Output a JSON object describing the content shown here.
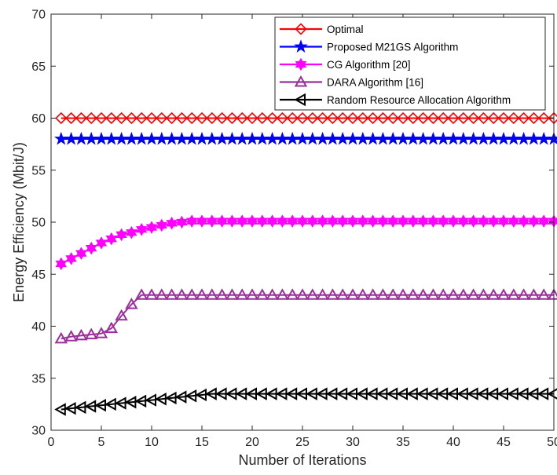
{
  "chart_data": {
    "type": "line",
    "title": "",
    "xlabel": "Number of Iterations",
    "ylabel": "Energy Efficiency (Mbit/J)",
    "xlim": [
      0,
      50
    ],
    "ylim": [
      30,
      70
    ],
    "xticks": [
      "0",
      "5",
      "10",
      "15",
      "20",
      "25",
      "30",
      "35",
      "40",
      "45",
      "50"
    ],
    "yticks": [
      "30",
      "35",
      "40",
      "45",
      "50",
      "55",
      "60",
      "65",
      "70"
    ],
    "grid": false,
    "legend_position": "top-right",
    "x": [
      1,
      2,
      3,
      4,
      5,
      6,
      7,
      8,
      9,
      10,
      11,
      12,
      13,
      14,
      15,
      16,
      17,
      18,
      19,
      20,
      21,
      22,
      23,
      24,
      25,
      26,
      27,
      28,
      29,
      30,
      31,
      32,
      33,
      34,
      35,
      36,
      37,
      38,
      39,
      40,
      41,
      42,
      43,
      44,
      45,
      46,
      47,
      48,
      49,
      50
    ],
    "series": [
      {
        "name": "Optimal",
        "color": "#ff0000",
        "marker": "diamond",
        "values": [
          60,
          60,
          60,
          60,
          60,
          60,
          60,
          60,
          60,
          60,
          60,
          60,
          60,
          60,
          60,
          60,
          60,
          60,
          60,
          60,
          60,
          60,
          60,
          60,
          60,
          60,
          60,
          60,
          60,
          60,
          60,
          60,
          60,
          60,
          60,
          60,
          60,
          60,
          60,
          60,
          60,
          60,
          60,
          60,
          60,
          60,
          60,
          60,
          60,
          60
        ]
      },
      {
        "name": "Proposed M21GS Algorithm",
        "color": "#0000ff",
        "marker": "star",
        "values": [
          58,
          58,
          58,
          58,
          58,
          58,
          58,
          58,
          58,
          58,
          58,
          58,
          58,
          58,
          58,
          58,
          58,
          58,
          58,
          58,
          58,
          58,
          58,
          58,
          58,
          58,
          58,
          58,
          58,
          58,
          58,
          58,
          58,
          58,
          58,
          58,
          58,
          58,
          58,
          58,
          58,
          58,
          58,
          58,
          58,
          58,
          58,
          58,
          58,
          58
        ]
      },
      {
        "name": "CG Algorithm [20]",
        "color": "#ff00ff",
        "marker": "hexagram",
        "values": [
          46,
          46.5,
          47,
          47.5,
          48,
          48.4,
          48.8,
          49,
          49.3,
          49.5,
          49.7,
          49.9,
          50,
          50.1,
          50.1,
          50.1,
          50.1,
          50.1,
          50.1,
          50.1,
          50.1,
          50.1,
          50.1,
          50.1,
          50.1,
          50.1,
          50.1,
          50.1,
          50.1,
          50.1,
          50.1,
          50.1,
          50.1,
          50.1,
          50.1,
          50.1,
          50.1,
          50.1,
          50.1,
          50.1,
          50.1,
          50.1,
          50.1,
          50.1,
          50.1,
          50.1,
          50.1,
          50.1,
          50.1,
          50.1
        ]
      },
      {
        "name": "DARA Algorithm [16]",
        "color": "#9b2f9b",
        "marker": "triangle-up",
        "values": [
          38.8,
          39,
          39.1,
          39.2,
          39.3,
          39.8,
          41,
          42.1,
          43,
          43,
          43,
          43,
          43,
          43,
          43,
          43,
          43,
          43,
          43,
          43,
          43,
          43,
          43,
          43,
          43,
          43,
          43,
          43,
          43,
          43,
          43,
          43,
          43,
          43,
          43,
          43,
          43,
          43,
          43,
          43,
          43,
          43,
          43,
          43,
          43,
          43,
          43,
          43,
          43,
          43
        ]
      },
      {
        "name": "Random Resource Allocation Algorithm",
        "color": "#000000",
        "marker": "triangle-left",
        "values": [
          32,
          32.1,
          32.2,
          32.3,
          32.4,
          32.5,
          32.6,
          32.7,
          32.8,
          32.9,
          33,
          33.1,
          33.2,
          33.3,
          33.4,
          33.5,
          33.5,
          33.5,
          33.5,
          33.5,
          33.5,
          33.5,
          33.5,
          33.5,
          33.5,
          33.5,
          33.5,
          33.5,
          33.5,
          33.5,
          33.5,
          33.5,
          33.5,
          33.5,
          33.5,
          33.5,
          33.5,
          33.5,
          33.5,
          33.5,
          33.5,
          33.5,
          33.5,
          33.5,
          33.5,
          33.5,
          33.5,
          33.5,
          33.5,
          33.5
        ]
      }
    ]
  }
}
